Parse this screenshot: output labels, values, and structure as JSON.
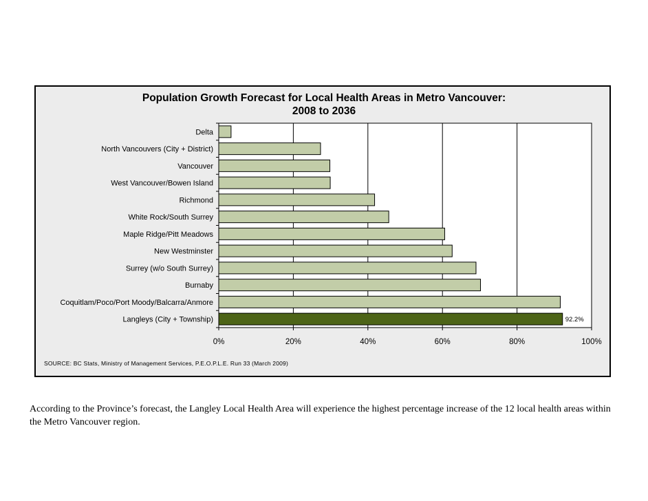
{
  "chart_data": {
    "type": "bar",
    "orientation": "horizontal",
    "title": "Population Growth Forecast for Local Health Areas in Metro Vancouver:",
    "subtitle": "2008 to 2036",
    "categories": [
      "Delta",
      "North Vancouvers (City + District)",
      "Vancouver",
      "West Vancouver/Bowen Island",
      "Richmond",
      "White Rock/South Surrey",
      "Maple Ridge/Pitt Meadows",
      "New Westminster",
      "Surrey (w/o South Surrey)",
      "Burnaby",
      "Coquitlam/Poco/Port Moody/Balcarra/Anmore",
      "Langleys (City + Township)"
    ],
    "values": [
      3.3,
      27.3,
      29.8,
      29.9,
      41.8,
      45.6,
      60.6,
      62.6,
      69.0,
      70.2,
      91.6,
      92.2
    ],
    "highlight_index": 11,
    "data_labels": {
      "11": "92.2%"
    },
    "xlim": [
      0,
      100
    ],
    "xticks": [
      "0%",
      "20%",
      "40%",
      "60%",
      "80%",
      "100%"
    ],
    "grid": true,
    "colors": {
      "bar": "#c2cda8",
      "bar_highlight": "#4d6417",
      "background": "#ececec"
    }
  },
  "source": "SOURCE:  BC Stats, Ministry of Management Services, P.E.O.P.L.E. Run 33 (March 2009)",
  "caption": "According to the Province’s forecast, the Langley Local Health Area will experience the highest percentage increase of the 12 local health areas within the Metro Vancouver region."
}
